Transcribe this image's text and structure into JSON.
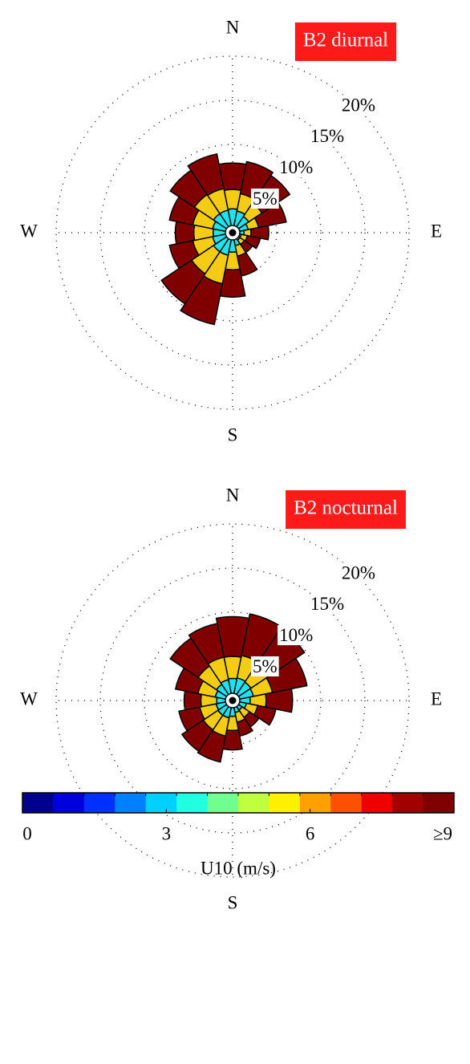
{
  "chart_data": [
    {
      "type": "windrose",
      "title": "B2 diurnal",
      "direction_labels": [
        "N",
        "E",
        "S",
        "W"
      ],
      "x": [
        0,
        22.5,
        45,
        67.5,
        90,
        112.5,
        135,
        157.5,
        180,
        202.5,
        225,
        247.5,
        270,
        292.5,
        315,
        337.5
      ],
      "ylim": [
        0,
        20
      ],
      "yticks": [
        {
          "value": 5,
          "label": "5%"
        },
        {
          "value": 10,
          "label": "10%"
        },
        {
          "value": 15,
          "label": "15%"
        },
        {
          "value": 20,
          "label": "20%"
        }
      ],
      "series": [
        {
          "color": "#1fe3f0",
          "values": [
            2.7,
            2.5,
            2.2,
            1.8,
            1.3,
            1.0,
            1.0,
            1.5,
            2.2,
            2.6,
            2.6,
            2.3,
            2.2,
            2.3,
            2.6,
            2.6
          ]
        },
        {
          "color": "#f5cc14",
          "values": [
            2.2,
            2.0,
            1.8,
            1.2,
            0.8,
            0.7,
            0.6,
            1.2,
            2.0,
            3.3,
            3.0,
            2.3,
            2.2,
            2.3,
            2.6,
            2.5
          ]
        },
        {
          "color": "#800000",
          "values": [
            3.0,
            3.7,
            3.8,
            3.2,
            2.0,
            1.5,
            1.1,
            2.3,
            3.1,
            4.7,
            4.1,
            2.7,
            2.1,
            2.7,
            3.3,
            4.0
          ]
        }
      ]
    },
    {
      "type": "windrose",
      "title": "B2 nocturnal",
      "direction_labels": [
        "N",
        "E",
        "S",
        "W"
      ],
      "x": [
        0,
        22.5,
        45,
        67.5,
        90,
        112.5,
        135,
        157.5,
        180,
        202.5,
        225,
        247.5,
        270,
        292.5,
        315,
        337.5
      ],
      "ylim": [
        0,
        20
      ],
      "yticks": [
        {
          "value": 5,
          "label": "5%"
        },
        {
          "value": 10,
          "label": "10%"
        },
        {
          "value": 15,
          "label": "15%"
        },
        {
          "value": 20,
          "label": "20%"
        }
      ],
      "series": [
        {
          "color": "#1fe3f0",
          "values": [
            2.5,
            2.6,
            2.5,
            2.4,
            2.0,
            1.6,
            1.3,
            1.4,
            1.8,
            2.0,
            2.0,
            1.9,
            1.8,
            2.0,
            2.2,
            2.4
          ]
        },
        {
          "color": "#f5cc14",
          "values": [
            2.5,
            2.6,
            2.3,
            2.2,
            1.8,
            1.3,
            1.0,
            1.1,
            1.6,
            2.1,
            2.0,
            1.9,
            1.8,
            2.0,
            2.5,
            2.6
          ]
        },
        {
          "color": "#800000",
          "values": [
            4.5,
            4.8,
            5.0,
            4.0,
            3.0,
            2.1,
            1.3,
            1.6,
            2.2,
            3.0,
            2.9,
            2.4,
            1.9,
            2.6,
            3.8,
            3.9
          ]
        }
      ]
    },
    {
      "type": "colorbar",
      "xlabel": "U10 (m/s)",
      "xlim": [
        0,
        9
      ],
      "xticks": [
        0,
        3,
        6,
        {
          "value": 9,
          "label": "≥9"
        }
      ],
      "colors": [
        "#00008f",
        "#0000df",
        "#0030ff",
        "#0080ff",
        "#00d0ff",
        "#20ffdf",
        "#70ff8f",
        "#bfff40",
        "#ffef00",
        "#ffa000",
        "#ff5000",
        "#ef0000",
        "#a00000",
        "#800000"
      ]
    }
  ]
}
